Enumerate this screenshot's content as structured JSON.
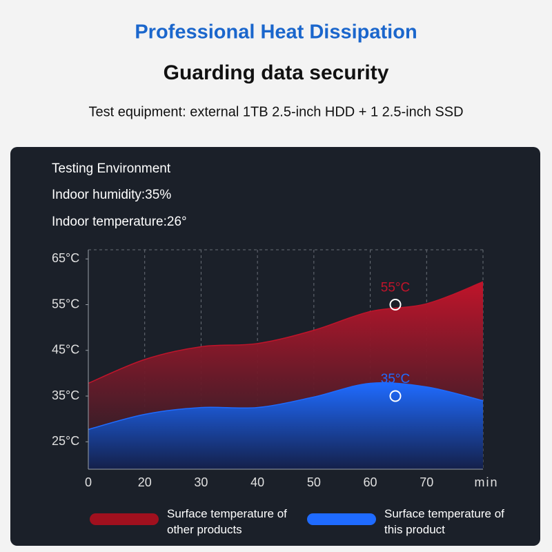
{
  "header": {
    "title": "Professional Heat Dissipation",
    "subtitle": "Guarding data security",
    "note": "Test equipment: external 1TB 2.5-inch HDD + 1 2.5-inch SSD"
  },
  "environment": [
    "Testing Environment",
    "Indoor humidity:35%",
    "Indoor temperature:26°"
  ],
  "chart_data": {
    "type": "area",
    "categories": [
      "0",
      "20",
      "30",
      "40",
      "50",
      "60",
      "70",
      null
    ],
    "x_label": "min",
    "series": [
      {
        "name": "Surface temperature of other products",
        "color": "#c0142a",
        "values": [
          37.8,
          43,
          45.8,
          46.5,
          49.4,
          53.5,
          55.2,
          60
        ]
      },
      {
        "name": "Surface temperature of this product",
        "color": "#1f6bff",
        "values": [
          27.7,
          31,
          32.5,
          32.5,
          34.8,
          37.8,
          37,
          34
        ]
      }
    ],
    "ylim": [
      19,
      67
    ],
    "yticks": [
      {
        "value": 25,
        "label": "25°C"
      },
      {
        "value": 35,
        "label": "35°C"
      },
      {
        "value": 45,
        "label": "45°C"
      },
      {
        "value": 55,
        "label": "55°C"
      },
      {
        "value": 65,
        "label": "65°C"
      }
    ],
    "annotations": [
      {
        "text": "55°C",
        "value": 55,
        "color": "#c0142a"
      },
      {
        "text": "35°C",
        "value": 35,
        "color": "#1f6bff"
      }
    ],
    "grid": true
  }
}
